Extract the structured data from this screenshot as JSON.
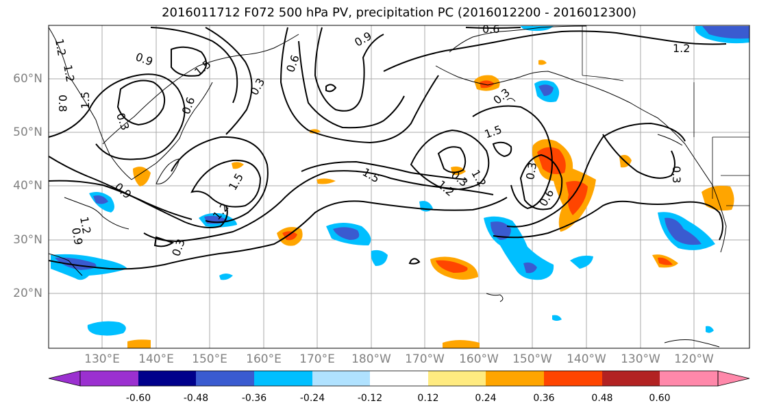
{
  "title": "2016011712 F072 500 hPa PV, precipitation PC (2016012200 - 2016012300)",
  "lat_labels": [
    "60°N",
    "50°N",
    "40°N",
    "30°N",
    "20°N"
  ],
  "lon_labels": [
    "130°E",
    "140°E",
    "150°E",
    "160°E",
    "170°E",
    "180°W",
    "170°W",
    "160°W",
    "150°W",
    "140°W",
    "130°W",
    "120°W"
  ],
  "contour_labels": [
    "1.2",
    "0.9",
    "1.5",
    "0.6",
    "0.3",
    "1.5",
    "1.2",
    "0.6",
    "0.3",
    "0.9",
    "1.5",
    "1.2",
    "0.3",
    "0.9",
    "0.6",
    "1.5",
    "1.2",
    "0.3",
    "1.5",
    "1.2",
    "0.3",
    "0.6",
    "0.3",
    "0.3",
    "1.2",
    "0.9",
    "1.2",
    "0.8"
  ],
  "colorbar": {
    "ticks": [
      "-0.60",
      "-0.48",
      "-0.36",
      "-0.24",
      "-0.12",
      "0.12",
      "0.24",
      "0.36",
      "0.48",
      "0.60"
    ],
    "colors": [
      "#9b30d0",
      "#00008b",
      "#3a5bd0",
      "#00bfff",
      "#b0e2ff",
      "#ffffff",
      "#ffeb80",
      "#ffa500",
      "#ff4500",
      "#b22222",
      "#ff88aa"
    ]
  }
}
